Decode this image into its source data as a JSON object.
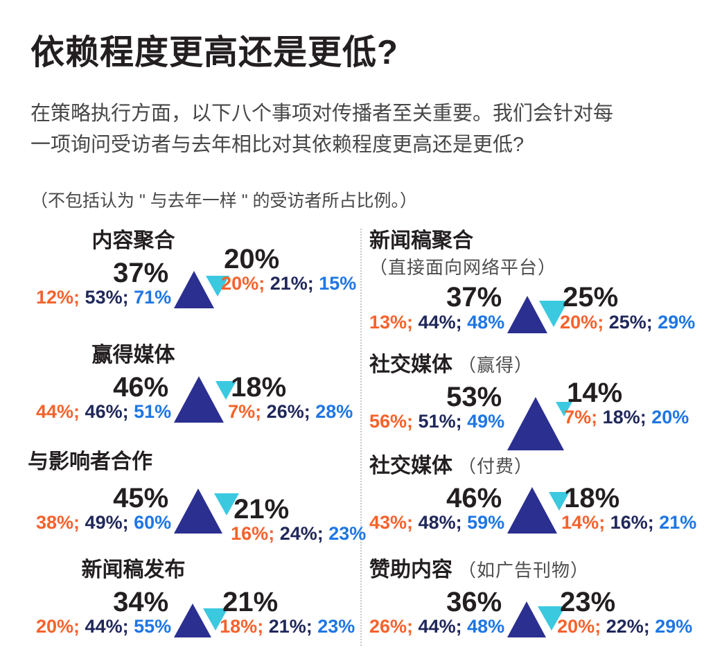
{
  "header": {
    "title": "依赖程度更高还是更低?",
    "description": "在策略执行方面，以下八个事项对传播者至关重要。我们会针对每一项询问受访者与去年相比对其依赖程度更高还是更低?",
    "note": "（不包括认为 \" 与去年一样 \" 的受访者所占比例。）"
  },
  "colors": {
    "upTriangle": "#2b2f90",
    "downTriangle": "#3bc9e0",
    "breakdownOrange": "#f5622c",
    "breakdownNavy": "#20285a",
    "breakdownBlue": "#1e76e4",
    "mainText": "#231f20",
    "bodyText": "#474747"
  },
  "panels": [
    {
      "title": "内容聚合",
      "note": "",
      "up": "37%",
      "down": "20%",
      "up_subs": [
        "12%",
        "53%",
        "71%"
      ],
      "down_subs": [
        "20%",
        "21%",
        "15%"
      ]
    },
    {
      "title": "赢得媒体",
      "note": "",
      "up": "46%",
      "down": "18%",
      "up_subs": [
        "44%",
        "46%",
        "51%"
      ],
      "down_subs": [
        "7%",
        "26%",
        "28%"
      ]
    },
    {
      "title": "与影响者合作",
      "note": "",
      "up": "45%",
      "down": "21%",
      "up_subs": [
        "38%",
        "49%",
        "60%"
      ],
      "down_subs": [
        "16%",
        "24%",
        "23%"
      ]
    },
    {
      "title": "新闻稿发布",
      "note": "",
      "up": "34%",
      "down": "21%",
      "up_subs": [
        "20%",
        "44%",
        "55%"
      ],
      "down_subs": [
        "18%",
        "21%",
        "23%"
      ]
    },
    {
      "title": "新闻稿聚合",
      "note": "（直接面向网络平台）",
      "up": "37%",
      "down": "25%",
      "up_subs": [
        "13%",
        "44%",
        "48%"
      ],
      "down_subs": [
        "20%",
        "25%",
        "29%"
      ]
    },
    {
      "title": "社交媒体",
      "note": "（赢得）",
      "up": "53%",
      "down": "14%",
      "up_subs": [
        "56%",
        "51%",
        "49%"
      ],
      "down_subs": [
        "7%",
        "18%",
        "20%"
      ]
    },
    {
      "title": "社交媒体",
      "note": "（付费）",
      "up": "46%",
      "down": "18%",
      "up_subs": [
        "43%",
        "48%",
        "59%"
      ],
      "down_subs": [
        "14%",
        "16%",
        "21%"
      ]
    },
    {
      "title": "赞助内容",
      "note": "（如广告刊物）",
      "up": "36%",
      "down": "23%",
      "up_subs": [
        "26%",
        "44%",
        "48%"
      ],
      "down_subs": [
        "20%",
        "22%",
        "29%"
      ]
    }
  ],
  "chart_data": {
    "type": "table",
    "title": "依赖程度更高还是更低?",
    "description": "在策略执行方面，以下八个事项对传播者至关重要。我们会针对每一项询问受访者与去年相比对其依赖程度更高还是更低?",
    "note": "（不包括认为 \" 与去年一样 \" 的受访者所占比例。）",
    "items": [
      {
        "name": "内容聚合",
        "qualifier": "",
        "higher_pct": 37,
        "lower_pct": 20,
        "higher_breakdown": [
          12,
          53,
          71
        ],
        "lower_breakdown": [
          20,
          21,
          15
        ]
      },
      {
        "name": "赢得媒体",
        "qualifier": "",
        "higher_pct": 46,
        "lower_pct": 18,
        "higher_breakdown": [
          44,
          46,
          51
        ],
        "lower_breakdown": [
          7,
          26,
          28
        ]
      },
      {
        "name": "与影响者合作",
        "qualifier": "",
        "higher_pct": 45,
        "lower_pct": 21,
        "higher_breakdown": [
          38,
          49,
          60
        ],
        "lower_breakdown": [
          16,
          24,
          23
        ]
      },
      {
        "name": "新闻稿发布",
        "qualifier": "",
        "higher_pct": 34,
        "lower_pct": 21,
        "higher_breakdown": [
          20,
          44,
          55
        ],
        "lower_breakdown": [
          18,
          21,
          23
        ]
      },
      {
        "name": "新闻稿聚合",
        "qualifier": "直接面向网络平台",
        "higher_pct": 37,
        "lower_pct": 25,
        "higher_breakdown": [
          13,
          44,
          48
        ],
        "lower_breakdown": [
          20,
          25,
          29
        ]
      },
      {
        "name": "社交媒体",
        "qualifier": "赢得",
        "higher_pct": 53,
        "lower_pct": 14,
        "higher_breakdown": [
          56,
          51,
          49
        ],
        "lower_breakdown": [
          7,
          18,
          20
        ]
      },
      {
        "name": "社交媒体",
        "qualifier": "付费",
        "higher_pct": 46,
        "lower_pct": 18,
        "higher_breakdown": [
          43,
          48,
          59
        ],
        "lower_breakdown": [
          14,
          16,
          21
        ]
      },
      {
        "name": "赞助内容",
        "qualifier": "如广告刊物",
        "higher_pct": 36,
        "lower_pct": 23,
        "higher_breakdown": [
          26,
          44,
          48
        ],
        "lower_breakdown": [
          20,
          22,
          29
        ]
      }
    ]
  }
}
